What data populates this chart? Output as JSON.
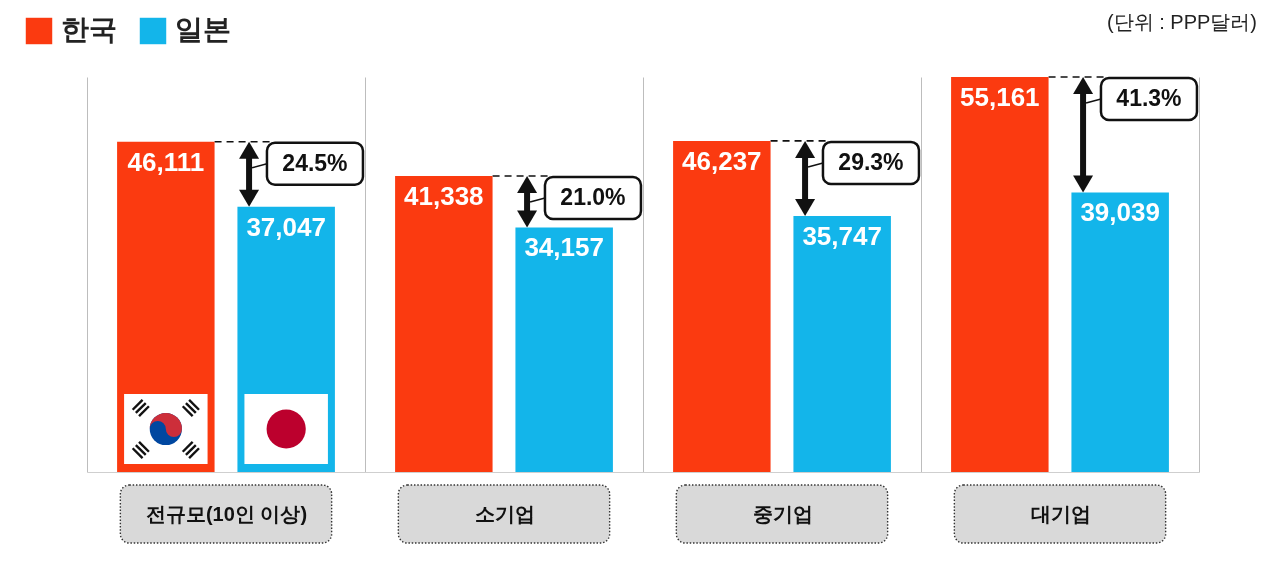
{
  "chart_data": {
    "type": "bar",
    "categories": [
      "전규모(10인 이상)",
      "소기업",
      "중기업",
      "대기업"
    ],
    "series": [
      {
        "name": "한국",
        "color": "#fb3a10",
        "values": [
          46111,
          41338,
          46237,
          55161
        ],
        "value_labels": [
          "46,111",
          "41,338",
          "46,237",
          "55,161"
        ]
      },
      {
        "name": "일본",
        "color": "#13b5ea",
        "values": [
          37047,
          34157,
          35747,
          39039
        ],
        "value_labels": [
          "37,047",
          "34,157",
          "35,747",
          "39,039"
        ]
      }
    ],
    "legend": "top left",
    "grid": "x",
    "tick_labels": "x",
    "annotations": [
      "(단위 : PPP달러)",
      "24.5%",
      "21.0%",
      "29.3%",
      "41.3%"
    ]
  }
}
